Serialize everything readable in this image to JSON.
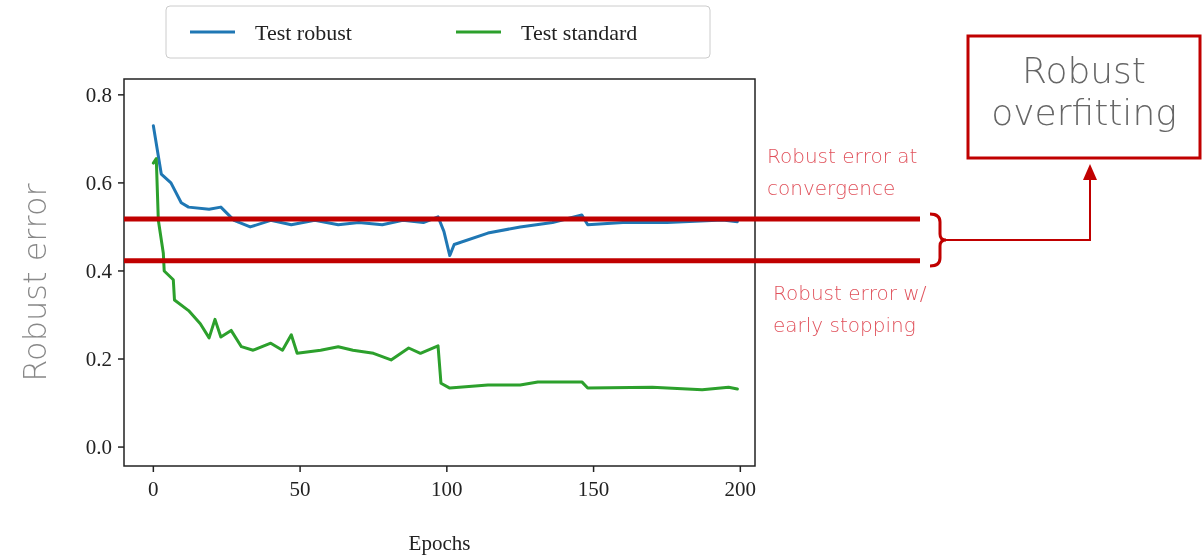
{
  "chart_data": {
    "type": "line",
    "xlabel": "Epochs",
    "ylabel": "Robust error",
    "xlim": [
      -10,
      205
    ],
    "ylim": [
      -0.043,
      0.836
    ],
    "xticks": [
      0,
      50,
      100,
      150,
      200
    ],
    "yticks": [
      {
        "value": 0,
        "label": "0.0"
      },
      {
        "value": 0.2,
        "label": "0.2"
      },
      {
        "value": 0.4,
        "label": "0.4"
      },
      {
        "value": 0.6,
        "label": "0.6"
      },
      {
        "value": 0.8,
        "label": "0.8"
      }
    ],
    "legend": "top",
    "grid": false,
    "series": [
      {
        "name": "Test robust",
        "color": "#1f77b4",
        "x": [
          0,
          2.7,
          6,
          9.5,
          12,
          19,
          23,
          27.5,
          33,
          40,
          47,
          55,
          63,
          70,
          78,
          85,
          92,
          97,
          99,
          101,
          102.5,
          114,
          125,
          136,
          146,
          148,
          160,
          175,
          194,
          199
        ],
        "values": [
          0.73,
          0.62,
          0.6,
          0.555,
          0.545,
          0.54,
          0.545,
          0.515,
          0.5,
          0.515,
          0.505,
          0.515,
          0.505,
          0.51,
          0.505,
          0.515,
          0.51,
          0.523,
          0.49,
          0.435,
          0.46,
          0.486,
          0.5,
          0.51,
          0.527,
          0.505,
          0.51,
          0.51,
          0.516,
          0.512
        ]
      },
      {
        "name": "Test standard",
        "color": "#2ca02c",
        "x": [
          0,
          1,
          1.7,
          3.4,
          3.7,
          6.8,
          7.2,
          12,
          16,
          19,
          21,
          23,
          26.5,
          30,
          34,
          40,
          44,
          47,
          49,
          57,
          63,
          68,
          75,
          81,
          87,
          91,
          97,
          98,
          101,
          114,
          125,
          131,
          146,
          148,
          170,
          187,
          196,
          199
        ],
        "values": [
          0.645,
          0.655,
          0.515,
          0.44,
          0.4,
          0.38,
          0.334,
          0.31,
          0.28,
          0.248,
          0.29,
          0.25,
          0.265,
          0.228,
          0.22,
          0.236,
          0.22,
          0.255,
          0.213,
          0.22,
          0.228,
          0.22,
          0.213,
          0.198,
          0.225,
          0.213,
          0.23,
          0.145,
          0.134,
          0.141,
          0.141,
          0.148,
          0.148,
          0.134,
          0.136,
          0.13,
          0.136,
          0.132
        ]
      }
    ],
    "ref_lines": [
      {
        "axis": "y",
        "value": 0.518,
        "label": "Robust error at convergence",
        "color": "#c00000"
      },
      {
        "axis": "y",
        "value": 0.423,
        "label": "Robust error w/ early stopping",
        "color": "#c00000"
      }
    ],
    "annotations": [
      "Robust overfitting"
    ]
  }
}
